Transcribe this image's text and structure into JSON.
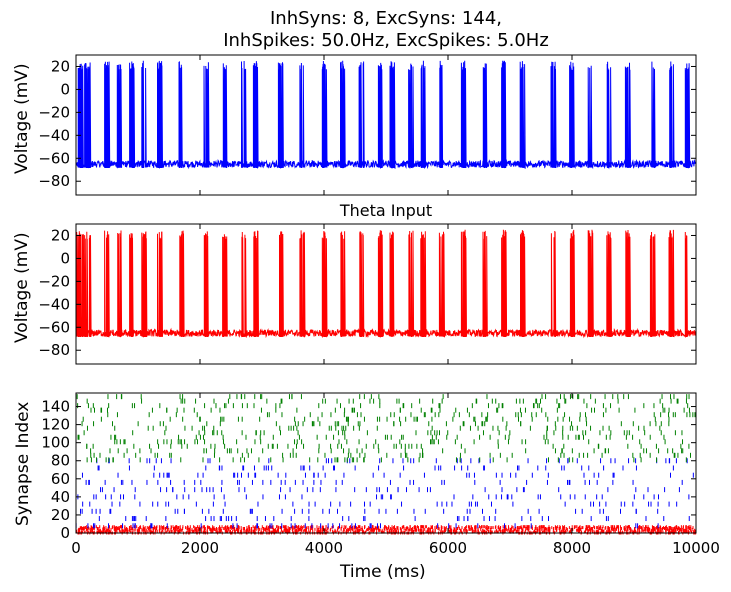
{
  "figure": {
    "title_line1": "InhSyns: 8, ExcSyns: 144,",
    "title_line2": "InhSpikes: 50.0Hz, ExcSpikes: 5.0Hz"
  },
  "colors": {
    "voltage1": "#0000ff",
    "voltage2": "#ff0000",
    "exc_raster": "#008000",
    "inh_raster": "#ff0000",
    "exc_mid_raster": "#0000ff"
  },
  "chart_data": [
    {
      "type": "line",
      "title": "",
      "ylabel": "Voltage (mV)",
      "xlabel": "",
      "xlim": [
        0,
        10000
      ],
      "ylim": [
        -92,
        30
      ],
      "yticks": [
        20,
        0,
        -20,
        -40,
        -60,
        -80
      ],
      "ytick_labels": [
        "20",
        "0",
        "−20",
        "−40",
        "−60",
        "−80"
      ],
      "series": [
        {
          "color": "#0000ff",
          "baseline_mV": -65,
          "spike_peak_mV": 25,
          "approx_spike_times_ms": [
            50,
            120,
            200,
            500,
            700,
            900,
            1100,
            1350,
            1700,
            2100,
            2400,
            2700,
            2900,
            3300,
            3650,
            4000,
            4300,
            4600,
            4900,
            5100,
            5400,
            5600,
            5900,
            6250,
            6600,
            6900,
            7200,
            7700,
            8000,
            8300,
            8600,
            8900,
            9300,
            9600,
            9850
          ]
        }
      ]
    },
    {
      "type": "line",
      "title": "Theta Input",
      "ylabel": "Voltage (mV)",
      "xlabel": "",
      "xlim": [
        0,
        10000
      ],
      "ylim": [
        -92,
        30
      ],
      "yticks": [
        20,
        0,
        -20,
        -40,
        -60,
        -80
      ],
      "ytick_labels": [
        "20",
        "0",
        "−20",
        "−40",
        "−60",
        "−80"
      ],
      "series": [
        {
          "color": "#ff0000",
          "baseline_mV": -65,
          "spike_peak_mV": 25,
          "approx_spike_times_ms": [
            50,
            120,
            200,
            500,
            700,
            900,
            1100,
            1350,
            1700,
            2100,
            2400,
            2700,
            2900,
            3300,
            3650,
            4000,
            4300,
            4600,
            4900,
            5100,
            5400,
            5600,
            5900,
            6250,
            6600,
            6900,
            7200,
            7700,
            8000,
            8300,
            8600,
            8900,
            9300,
            9600,
            9850
          ]
        }
      ]
    },
    {
      "type": "scatter",
      "title": "",
      "ylabel": "Synapse Index",
      "xlabel": "Time (ms)",
      "xlim": [
        0,
        10000
      ],
      "ylim": [
        0,
        155
      ],
      "yticks": [
        0,
        20,
        40,
        60,
        80,
        100,
        120,
        140
      ],
      "xticks": [
        0,
        2000,
        4000,
        6000,
        8000,
        10000
      ],
      "series": [
        {
          "marker": "|",
          "color": "#ff0000",
          "rows": "0-7",
          "rate_hz": 50.0
        },
        {
          "marker": "|",
          "color": "#0000ff",
          "rows": "8-80",
          "rate_hz": 5.0
        },
        {
          "marker": "|",
          "color": "#008000",
          "rows": "81-151",
          "rate_hz": 5.0
        }
      ]
    }
  ]
}
